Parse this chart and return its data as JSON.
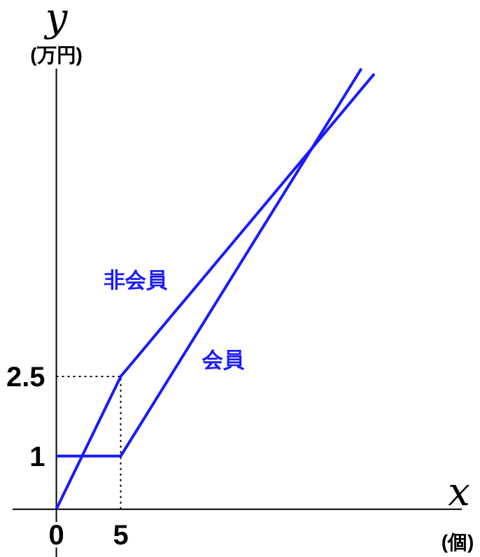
{
  "chart_data": {
    "type": "line",
    "xlabel": "x",
    "ylabel": "y",
    "annotations": [
      "(個)",
      "(万円)"
    ],
    "xlim": [
      -3.4,
      31.5
    ],
    "ylim": [
      -0.9,
      8.3
    ],
    "xticks": [
      0,
      5
    ],
    "yticks": [
      1,
      2.5
    ],
    "grid": false,
    "marker": "none",
    "line_style": "solid",
    "ref_lines": [
      {
        "axis": "x",
        "value": 5,
        "line_style": "dotted",
        "color": "#000000"
      },
      {
        "axis": "y",
        "value": 2.5,
        "line_style": "dotted",
        "color": "#000000"
      }
    ],
    "series": [
      {
        "name": "非会員",
        "color": "#1a1aff",
        "x": [
          0,
          5,
          24.7
        ],
        "values": [
          0,
          2.5,
          8.2
        ]
      },
      {
        "name": "会員",
        "color": "#1a1aff",
        "x": [
          0,
          5,
          23.7
        ],
        "values": [
          1,
          1,
          8.3
        ]
      }
    ]
  }
}
